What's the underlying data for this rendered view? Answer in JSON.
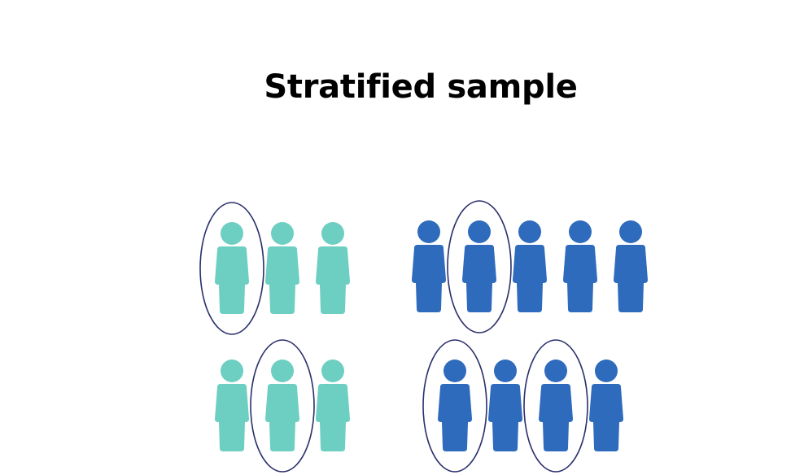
{
  "title": "Stratified sample",
  "colors": {
    "stratum_a": "#6dcfc1",
    "stratum_b": "#2e6bbd",
    "selection_outline": "#2b2f6b",
    "background": "#ffffff"
  },
  "groups": [
    {
      "stratum": "a",
      "rows": [
        {
          "people": [
            {
              "selected": true
            },
            {
              "selected": false
            },
            {
              "selected": false
            }
          ]
        },
        {
          "people": [
            {
              "selected": false
            },
            {
              "selected": true
            },
            {
              "selected": false
            }
          ]
        }
      ]
    },
    {
      "stratum": "b",
      "rows": [
        {
          "people": [
            {
              "selected": false
            },
            {
              "selected": true
            },
            {
              "selected": false
            },
            {
              "selected": false
            },
            {
              "selected": false
            }
          ]
        },
        {
          "people": [
            {
              "selected": true
            },
            {
              "selected": false
            },
            {
              "selected": true
            },
            {
              "selected": false
            }
          ]
        }
      ]
    }
  ],
  "icon": "person-icon"
}
